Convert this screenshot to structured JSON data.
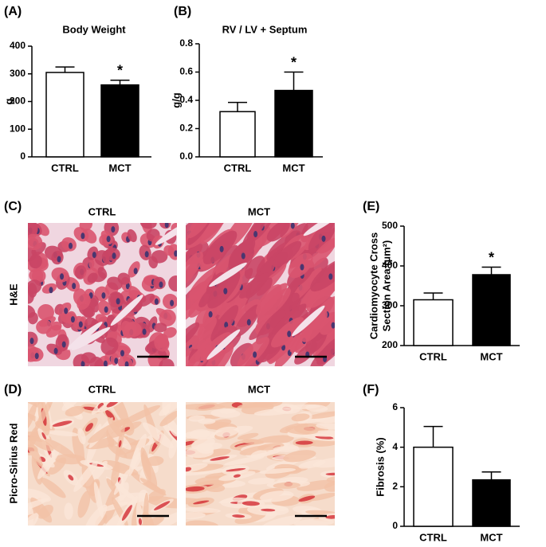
{
  "chart_data": [
    {
      "type": "bar",
      "panel_label": "(A)",
      "title": "Body Weight",
      "ylabel": "g",
      "categories": [
        "CTRL",
        "MCT"
      ],
      "values": [
        305,
        260
      ],
      "errors": [
        20,
        17
      ],
      "colors": [
        "#ffffff",
        "#000000"
      ],
      "significance": [
        null,
        "*"
      ],
      "ylim": [
        0,
        400
      ],
      "yticks": [
        0,
        100,
        200,
        300,
        400
      ]
    },
    {
      "type": "bar",
      "panel_label": "(B)",
      "title": "RV / LV + Septum",
      "ylabel": "g/g",
      "categories": [
        "CTRL",
        "MCT"
      ],
      "values": [
        0.32,
        0.47
      ],
      "errors": [
        0.065,
        0.13
      ],
      "colors": [
        "#ffffff",
        "#000000"
      ],
      "significance": [
        null,
        "*"
      ],
      "ylim": [
        0,
        0.8
      ],
      "yticks": [
        {
          "value": 0,
          "label": "0.0"
        },
        0.2,
        0.4,
        0.6,
        0.8
      ]
    },
    {
      "type": "bar",
      "panel_label": "(E)",
      "ylabel": [
        "Cardiomyocyte Cross",
        "Section Area (µm²)"
      ],
      "categories": [
        "CTRL",
        "MCT"
      ],
      "values": [
        315,
        378
      ],
      "errors": [
        17,
        19
      ],
      "colors": [
        "#ffffff",
        "#000000"
      ],
      "significance": [
        null,
        "*"
      ],
      "ylim": [
        200,
        500
      ],
      "yticks": [
        200,
        300,
        400,
        500
      ]
    },
    {
      "type": "bar",
      "panel_label": "(F)",
      "ylabel": "Fibrosis (%)",
      "categories": [
        "CTRL",
        "MCT"
      ],
      "values": [
        4.0,
        2.35
      ],
      "errors": [
        1.05,
        0.4
      ],
      "colors": [
        "#ffffff",
        "#000000"
      ],
      "ylim": [
        0,
        6
      ],
      "yticks": [
        0,
        2,
        4,
        6
      ]
    }
  ],
  "image_panels": [
    {
      "label": "(C)",
      "columns": [
        "CTRL",
        "MCT"
      ],
      "row_label": "H&E"
    },
    {
      "label": "(D)",
      "columns": [
        "CTRL",
        "MCT"
      ],
      "row_label": "Picro-Sirius Red"
    }
  ]
}
